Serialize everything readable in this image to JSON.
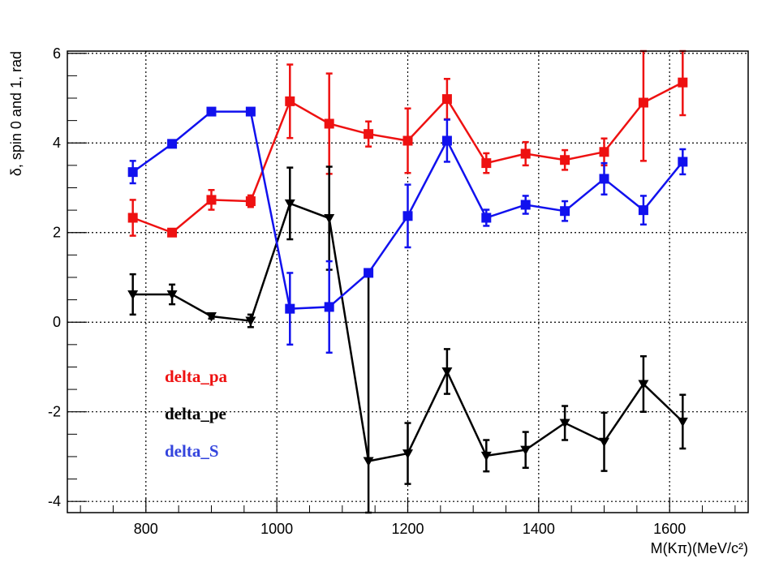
{
  "chart_data": {
    "type": "line",
    "title": "",
    "xlabel": "M(Kπ)(MeV/c²)",
    "ylabel": "δ, spin 0 and 1, rad",
    "xlim": [
      680,
      1720
    ],
    "ylim": [
      -4.25,
      6.05
    ],
    "x_ticks": [
      800,
      1000,
      1200,
      1400,
      1600
    ],
    "y_ticks": [
      -4,
      -2,
      0,
      2,
      4,
      6
    ],
    "grid": true,
    "legend_position": "bottom-left",
    "series": [
      {
        "name": "delta_pa",
        "color": "#ee1111",
        "marker": "square",
        "x": [
          780,
          840,
          900,
          960,
          1020,
          1080,
          1140,
          1200,
          1260,
          1320,
          1380,
          1440,
          1500,
          1560,
          1620
        ],
        "y": [
          2.33,
          2.0,
          2.73,
          2.7,
          4.93,
          4.43,
          4.2,
          4.05,
          4.98,
          3.55,
          3.76,
          3.62,
          3.8,
          4.9,
          5.35
        ],
        "err": [
          0.4,
          0.05,
          0.22,
          0.13,
          0.82,
          1.12,
          0.28,
          0.72,
          0.45,
          0.22,
          0.26,
          0.22,
          0.3,
          1.3,
          0.73
        ]
      },
      {
        "name": "delta_pe",
        "color": "#000000",
        "marker": "triangle-down",
        "x": [
          780,
          840,
          900,
          960,
          1020,
          1080,
          1140,
          1200,
          1260,
          1320,
          1380,
          1440,
          1500,
          1560,
          1620
        ],
        "y": [
          0.62,
          0.62,
          0.13,
          0.03,
          2.65,
          2.32,
          -3.1,
          -2.93,
          -1.1,
          -2.98,
          -2.85,
          -2.25,
          -2.67,
          -1.38,
          -2.22
        ],
        "err": [
          0.45,
          0.22,
          0.05,
          0.14,
          0.8,
          1.15,
          4.2,
          0.68,
          0.5,
          0.35,
          0.4,
          0.38,
          0.65,
          0.62,
          0.6
        ]
      },
      {
        "name": "delta_S",
        "color": "#1111ee",
        "marker": "square",
        "x": [
          780,
          840,
          900,
          960,
          1020,
          1080,
          1140,
          1200,
          1260,
          1320,
          1380,
          1440,
          1500,
          1560,
          1620
        ],
        "y": [
          3.35,
          3.98,
          4.7,
          4.7,
          0.3,
          0.34,
          1.1,
          2.37,
          4.05,
          2.33,
          2.62,
          2.48,
          3.2,
          2.5,
          3.58
        ],
        "err": [
          0.25,
          0.05,
          0.05,
          0.05,
          0.8,
          1.02,
          0.05,
          0.7,
          0.47,
          0.18,
          0.2,
          0.22,
          0.35,
          0.32,
          0.28
        ]
      }
    ],
    "legend": [
      {
        "label": "delta_pa",
        "color": "#ee1111"
      },
      {
        "label": "delta_pe",
        "color": "#000000"
      },
      {
        "label": "delta_S",
        "color": "#3344dd"
      }
    ]
  }
}
